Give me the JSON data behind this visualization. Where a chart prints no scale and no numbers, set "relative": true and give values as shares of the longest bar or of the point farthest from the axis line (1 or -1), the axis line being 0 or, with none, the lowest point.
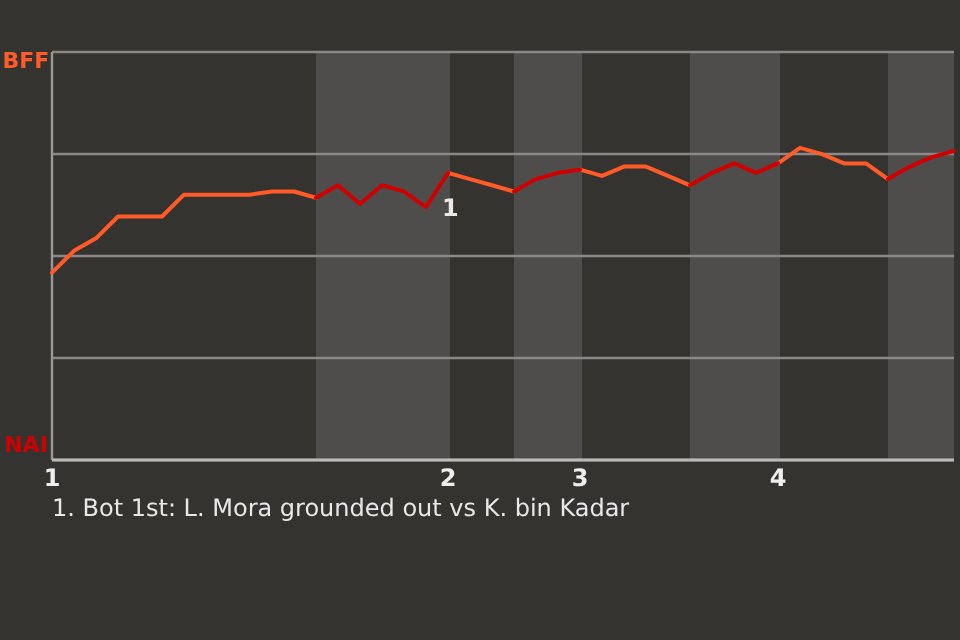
{
  "chart_data": {
    "type": "line",
    "relative": true,
    "categories": [
      "1",
      null,
      null,
      null,
      null,
      null,
      null,
      null,
      null,
      null,
      null,
      null,
      null,
      null,
      null,
      null,
      null,
      null,
      "2",
      null,
      null,
      null,
      null,
      null,
      "3",
      null,
      null,
      null,
      null,
      null,
      null,
      null,
      null,
      "4",
      null,
      null,
      null,
      null,
      null,
      null,
      null,
      null
    ],
    "series": [
      {
        "name": "BFF",
        "color": "#ff5a28",
        "values": [
          0.6,
          0.67,
          0.71,
          0.78,
          0.78,
          0.78,
          0.85,
          0.85,
          0.85,
          0.85,
          0.86,
          0.86,
          0.84,
          null,
          null,
          null,
          null,
          null,
          0.92,
          0.9,
          0.88,
          0.86,
          null,
          null,
          0.93,
          0.91,
          0.94,
          0.94,
          0.91,
          0.88,
          null,
          null,
          null,
          0.95,
          1,
          0.98,
          0.95,
          0.95,
          0.9,
          null,
          null,
          null
        ]
      },
      {
        "name": "NAI",
        "color": "#d00000",
        "values": [
          null,
          null,
          null,
          null,
          null,
          null,
          null,
          null,
          null,
          null,
          null,
          null,
          0.84,
          0.88,
          0.82,
          0.88,
          0.86,
          0.81,
          0.92,
          null,
          null,
          0.86,
          0.9,
          0.92,
          0.93,
          null,
          null,
          null,
          null,
          0.88,
          0.92,
          0.95,
          0.92,
          0.95,
          null,
          null,
          null,
          null,
          0.9,
          0.94,
          0.97,
          0.99
        ]
      }
    ],
    "grid": "y",
    "marker": "none",
    "line_style": "solid",
    "annotations": [
      "1",
      "1. Bot 1st: L. Mora grounded out vs K. bin Kadar"
    ]
  }
}
